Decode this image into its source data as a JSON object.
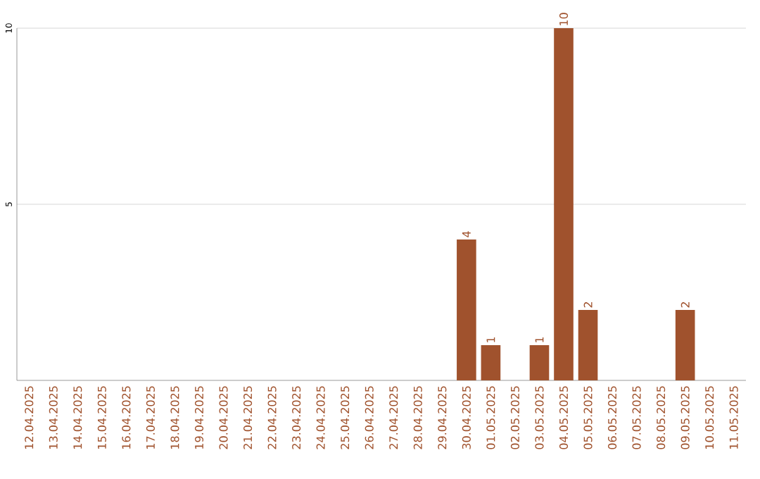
{
  "chart_data": {
    "type": "bar",
    "categories": [
      "12.04.2025",
      "13.04.2025",
      "14.04.2025",
      "15.04.2025",
      "16.04.2025",
      "17.04.2025",
      "18.04.2025",
      "19.04.2025",
      "20.04.2025",
      "21.04.2025",
      "22.04.2025",
      "23.04.2025",
      "24.04.2025",
      "25.04.2025",
      "26.04.2025",
      "27.04.2025",
      "28.04.2025",
      "29.04.2025",
      "30.04.2025",
      "01.05.2025",
      "02.05.2025",
      "03.05.2025",
      "04.05.2025",
      "05.05.2025",
      "06.05.2025",
      "07.05.2025",
      "08.05.2025",
      "09.05.2025",
      "10.05.2025",
      "11.05.2025"
    ],
    "values": [
      0,
      0,
      0,
      0,
      0,
      0,
      0,
      0,
      0,
      0,
      0,
      0,
      0,
      0,
      0,
      0,
      0,
      0,
      4,
      1,
      0,
      1,
      10,
      2,
      0,
      0,
      0,
      2,
      0,
      0
    ],
    "value_labels": [
      null,
      null,
      null,
      null,
      null,
      null,
      null,
      null,
      null,
      null,
      null,
      null,
      null,
      null,
      null,
      null,
      null,
      null,
      "4",
      "1",
      null,
      "1",
      "10",
      "2",
      null,
      null,
      null,
      "2",
      null,
      null
    ],
    "color": "#a0522d",
    "ylim": [
      0,
      10
    ],
    "yticks": [
      5,
      10
    ],
    "grid": "y"
  }
}
